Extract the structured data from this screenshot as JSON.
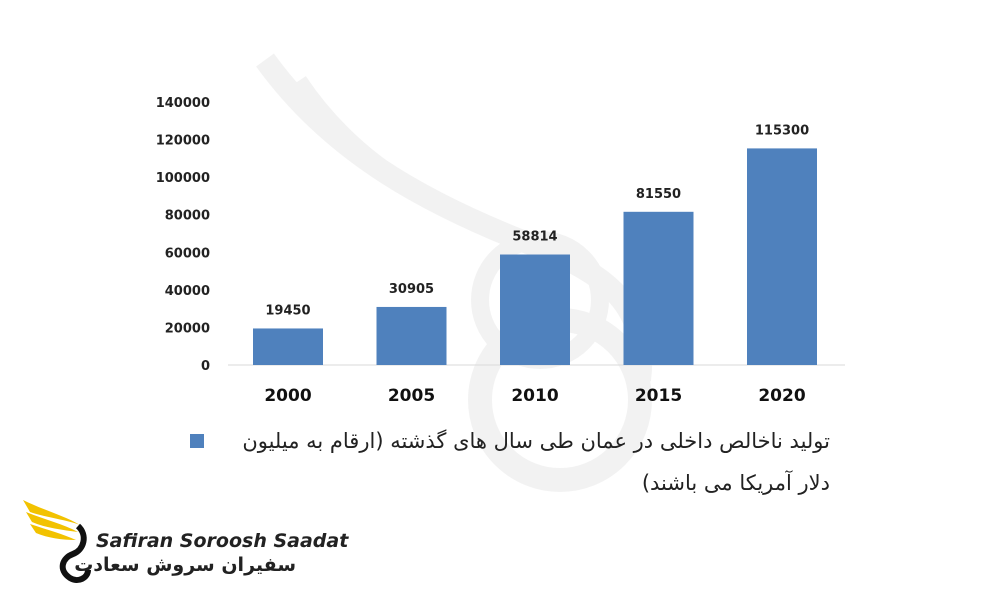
{
  "chart_data": {
    "type": "bar",
    "categories": [
      "2000",
      "2005",
      "2010",
      "2015",
      "2020"
    ],
    "values": [
      19450,
      30905,
      58814,
      81550,
      115300
    ],
    "data_labels": [
      "19450",
      "30905",
      "58814",
      "81550",
      "115300"
    ],
    "ylim": [
      0,
      140000
    ],
    "y_ticks": [
      "0",
      "20000",
      "40000",
      "60000",
      "80000",
      "100000",
      "120000",
      "140000"
    ],
    "legend": "تولید ناخالص داخلی در عمان طی سال های گذشته (ارقام به میلیون دلار آمریکا می باشند)",
    "legend_position": "bottom",
    "grid": false,
    "bar_color": "#4f81bd"
  },
  "branding": {
    "name_en": "Safiran Soroosh Saadat",
    "name_fa": "سفیران سروش سعادت"
  }
}
